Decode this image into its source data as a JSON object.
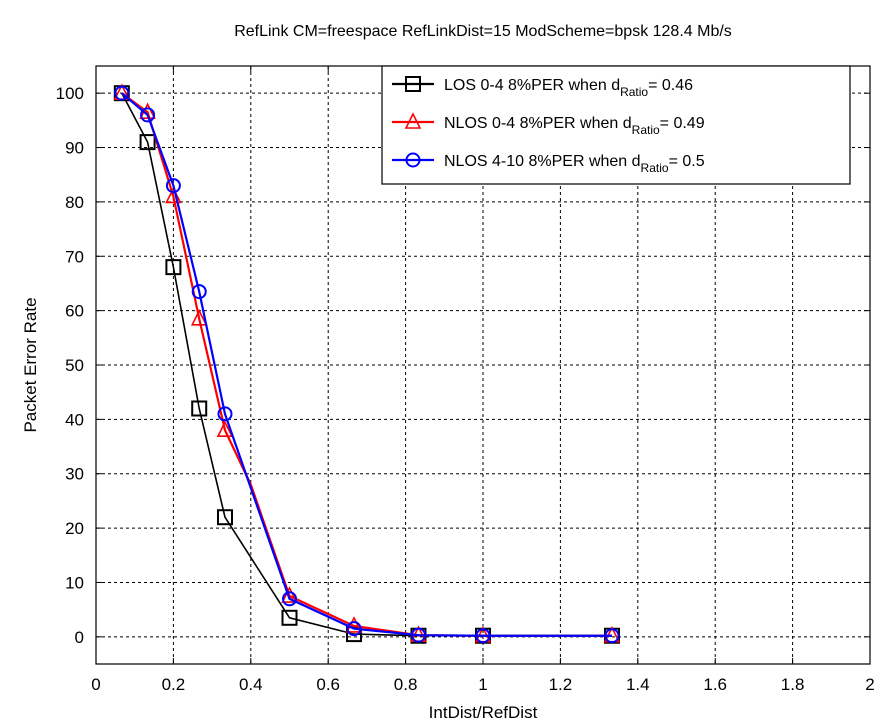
{
  "chart_data": {
    "type": "line",
    "title": "RefLink CM=freespace   RefLinkDist=15   ModScheme=bpsk 128.4 Mb/s",
    "xlabel": "IntDist/RefDist",
    "ylabel": "Packet Error Rate",
    "xlim": [
      0,
      2
    ],
    "ylim": [
      -5,
      105
    ],
    "xticks": [
      0,
      0.2,
      0.4,
      0.6,
      0.8,
      1,
      1.2,
      1.4,
      1.6,
      1.8,
      2
    ],
    "xtick_labels": [
      "0",
      "0.2",
      "0.4",
      "0.6",
      "0.8",
      "1",
      "1.2",
      "1.4",
      "1.6",
      "1.8",
      "2"
    ],
    "yticks": [
      0,
      10,
      20,
      30,
      40,
      50,
      60,
      70,
      80,
      90,
      100
    ],
    "ytick_labels": [
      "0",
      "10",
      "20",
      "30",
      "40",
      "50",
      "60",
      "70",
      "80",
      "90",
      "100"
    ],
    "grid": true,
    "legend_position": "top-right",
    "series": [
      {
        "name": "LOS 0-4   8%PER when d",
        "name_sub": "Ratio",
        "name_tail": "= 0.46",
        "color": "#000000",
        "marker": "square",
        "x": [
          0.0667,
          0.1333,
          0.2,
          0.2667,
          0.3333,
          0.5,
          0.6667,
          0.8333,
          1.0,
          1.3333
        ],
        "values": [
          100,
          91,
          68,
          42,
          22,
          3.5,
          0.5,
          0.2,
          0.2,
          0.2
        ]
      },
      {
        "name": "NLOS 0-4  8%PER when d",
        "name_sub": "Ratio",
        "name_tail": "= 0.49",
        "color": "#ff0000",
        "marker": "triangle",
        "x": [
          0.0667,
          0.1333,
          0.2,
          0.2667,
          0.3333,
          0.4,
          0.5,
          0.6667,
          0.8333,
          1.0,
          1.3333
        ],
        "values": [
          100,
          96.5,
          81,
          58.5,
          38,
          28,
          7.5,
          2,
          0.3,
          0.2,
          0.2
        ]
      },
      {
        "name": "NLOS 4-10 8%PER when d",
        "name_sub": "Ratio",
        "name_tail": "= 0.5",
        "color": "#0000ff",
        "marker": "circle",
        "x": [
          0.0667,
          0.1333,
          0.2,
          0.2667,
          0.3333,
          0.5,
          0.6667,
          0.8333,
          1.0,
          1.3333
        ],
        "values": [
          100,
          96,
          83,
          63.5,
          41,
          7,
          1.5,
          0.3,
          0.2,
          0.2
        ]
      }
    ]
  }
}
